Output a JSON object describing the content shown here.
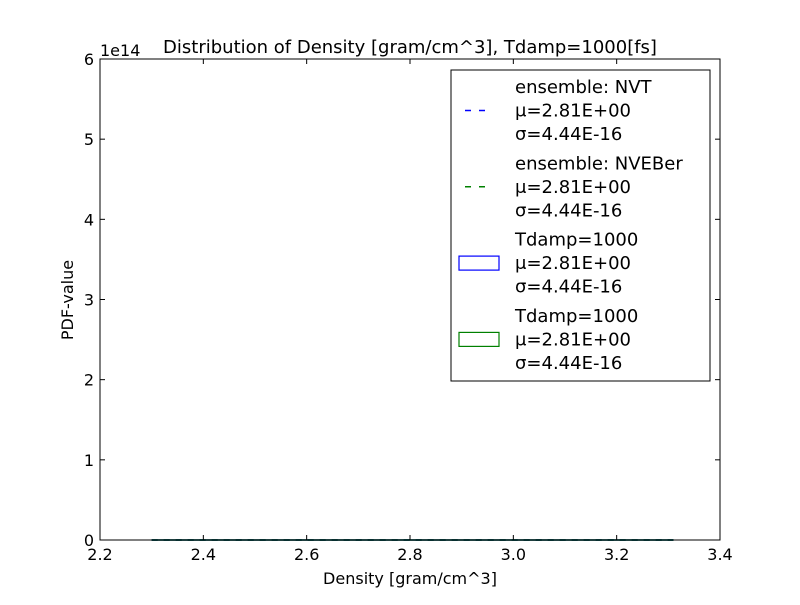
{
  "chart_data": {
    "type": "line",
    "title": "Distribution of Density [gram/cm^3], Tdamp=1000[fs]",
    "xlabel": "Density [gram/cm^3]",
    "ylabel": "PDF-value",
    "y_offset_label": "1e14",
    "xlim": [
      2.2,
      3.4
    ],
    "ylim": [
      0,
      6
    ],
    "x_ticks": [
      "2.2",
      "2.4",
      "2.6",
      "2.8",
      "3.0",
      "3.2",
      "3.4"
    ],
    "y_ticks": [
      "0",
      "1",
      "2",
      "3",
      "4",
      "5",
      "6"
    ],
    "grid": false,
    "legend_placement": "upper-right",
    "series": [
      {
        "style": "dashed-line",
        "color": "#0000ff",
        "legend": [
          "ensemble: NVT",
          "μ=2.81E+00",
          "σ=4.44E-16"
        ],
        "x": [
          2.3,
          3.31
        ],
        "y": [
          0,
          0
        ]
      },
      {
        "style": "dashed-line",
        "color": "#008000",
        "legend": [
          "ensemble: NVEBer",
          "μ=2.81E+00",
          "σ=4.44E-16"
        ],
        "x": [
          2.3,
          3.31
        ],
        "y": [
          0,
          0
        ]
      },
      {
        "style": "histogram",
        "color": "#0000ff",
        "legend": [
          "Tdamp=1000",
          "μ=2.81E+00",
          "σ=4.44E-16"
        ],
        "x": [
          2.3,
          3.31
        ],
        "y": [
          0,
          0
        ]
      },
      {
        "style": "histogram",
        "color": "#008000",
        "legend": [
          "Tdamp=1000",
          "μ=2.81E+00",
          "σ=4.44E-16"
        ],
        "x": [
          2.3,
          3.31
        ],
        "y": [
          0,
          0
        ]
      }
    ]
  }
}
